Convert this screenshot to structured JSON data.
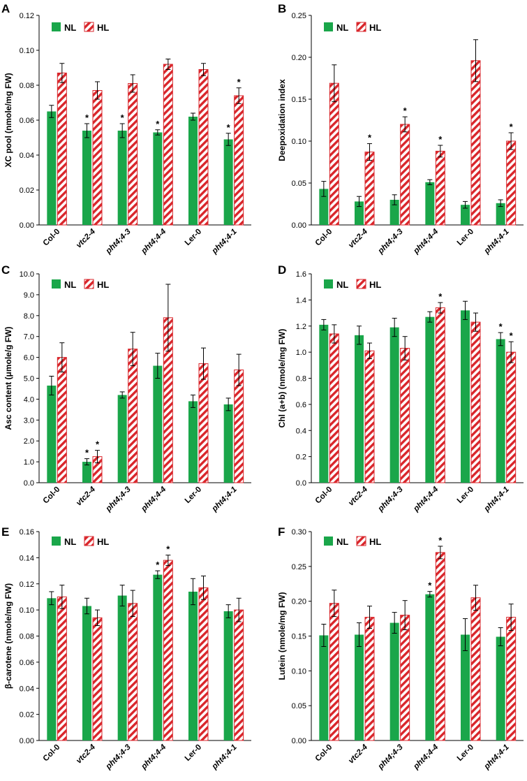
{
  "colors": {
    "nl": "#1aa64a",
    "hl_stroke": "#d9262b",
    "hl_stripe": "#d9262b"
  },
  "legend": {
    "nl": "NL",
    "hl": "HL"
  },
  "chart_data": [
    {
      "type": "bar",
      "letter": "A",
      "ylabel": "XC pool (nmole/mg FW)",
      "ylim": [
        0,
        0.12
      ],
      "ticks": [
        "0.00",
        "0.02",
        "0.04",
        "0.06",
        "0.08",
        "0.10",
        "0.12"
      ],
      "categories": [
        "Col-0",
        "vtc2-4",
        "pht4;4-3",
        "pht4;4-4",
        "Ler-0",
        "pht4;4-1"
      ],
      "italic": [
        false,
        true,
        true,
        true,
        false,
        true
      ],
      "series": [
        {
          "name": "NL",
          "values": [
            0.065,
            0.054,
            0.054,
            0.053,
            0.062,
            0.049
          ],
          "errors": [
            0.0035,
            0.004,
            0.004,
            0.0015,
            0.002,
            0.0035
          ],
          "sig": [
            false,
            true,
            true,
            true,
            false,
            true
          ]
        },
        {
          "name": "HL",
          "values": [
            0.087,
            0.077,
            0.081,
            0.092,
            0.089,
            0.074
          ],
          "errors": [
            0.0055,
            0.005,
            0.005,
            0.003,
            0.0035,
            0.0045
          ],
          "sig": [
            false,
            false,
            false,
            false,
            false,
            true
          ]
        }
      ]
    },
    {
      "type": "bar",
      "letter": "B",
      "ylabel": "Deepoxidation index",
      "ylim": [
        0,
        0.25
      ],
      "ticks": [
        "0.00",
        "0.05",
        "0.10",
        "0.15",
        "0.20",
        "0.25"
      ],
      "categories": [
        "Col-0",
        "vtc2-4",
        "pht4;4-3",
        "pht4;4-4",
        "Ler-0",
        "pht4;4-1"
      ],
      "italic": [
        false,
        true,
        true,
        true,
        false,
        true
      ],
      "series": [
        {
          "name": "NL",
          "values": [
            0.043,
            0.028,
            0.03,
            0.051,
            0.024,
            0.026
          ],
          "errors": [
            0.009,
            0.006,
            0.006,
            0.003,
            0.004,
            0.004
          ],
          "sig": [
            false,
            false,
            false,
            false,
            false,
            false
          ]
        },
        {
          "name": "HL",
          "values": [
            0.169,
            0.087,
            0.12,
            0.088,
            0.196,
            0.1
          ],
          "errors": [
            0.022,
            0.01,
            0.009,
            0.007,
            0.025,
            0.01
          ],
          "sig": [
            false,
            true,
            true,
            true,
            false,
            true
          ]
        }
      ]
    },
    {
      "type": "bar",
      "letter": "C",
      "ylabel": "Asc content (μmole/g FW)",
      "ylim": [
        0,
        10
      ],
      "ticks": [
        "0.0",
        "1.0",
        "2.0",
        "3.0",
        "4.0",
        "5.0",
        "6.0",
        "7.0",
        "8.0",
        "9.0",
        "10.0"
      ],
      "categories": [
        "Col-0",
        "vtc2-4",
        "pht4;4-3",
        "pht4;4-4",
        "Ler-0",
        "pht4;4-1"
      ],
      "italic": [
        false,
        true,
        true,
        true,
        false,
        true
      ],
      "series": [
        {
          "name": "NL",
          "values": [
            4.65,
            1.0,
            4.2,
            5.6,
            3.9,
            3.75
          ],
          "errors": [
            0.45,
            0.15,
            0.15,
            0.6,
            0.3,
            0.3
          ],
          "sig": [
            false,
            true,
            false,
            false,
            false,
            false
          ]
        },
        {
          "name": "HL",
          "values": [
            6.0,
            1.25,
            6.4,
            7.9,
            5.7,
            5.4
          ],
          "errors": [
            0.7,
            0.3,
            0.8,
            1.6,
            0.75,
            0.75
          ],
          "sig": [
            false,
            true,
            false,
            false,
            false,
            false
          ]
        }
      ]
    },
    {
      "type": "bar",
      "letter": "D",
      "ylabel": "Chl (a+b) (nmole/mg FW)",
      "ylim": [
        0,
        1.6
      ],
      "ticks": [
        "0.0",
        "0.2",
        "0.4",
        "0.6",
        "0.8",
        "1.0",
        "1.2",
        "1.4",
        "1.6"
      ],
      "categories": [
        "Col-0",
        "vtc2-4",
        "pht4;4-3",
        "pht4;4-4",
        "Ler-0",
        "pht4;4-1"
      ],
      "italic": [
        false,
        true,
        true,
        true,
        false,
        true
      ],
      "series": [
        {
          "name": "NL",
          "values": [
            1.21,
            1.13,
            1.19,
            1.27,
            1.32,
            1.1
          ],
          "errors": [
            0.04,
            0.07,
            0.07,
            0.04,
            0.07,
            0.05
          ],
          "sig": [
            false,
            false,
            false,
            false,
            false,
            true
          ]
        },
        {
          "name": "HL",
          "values": [
            1.14,
            1.01,
            1.03,
            1.34,
            1.23,
            1.0
          ],
          "errors": [
            0.07,
            0.06,
            0.09,
            0.04,
            0.07,
            0.08
          ],
          "sig": [
            false,
            false,
            false,
            true,
            false,
            true
          ]
        }
      ]
    },
    {
      "type": "bar",
      "letter": "E",
      "ylabel": "β-carotene (nmole/mg FW)",
      "ylim": [
        0,
        0.16
      ],
      "ticks": [
        "0.00",
        "0.02",
        "0.04",
        "0.06",
        "0.08",
        "0.10",
        "0.12",
        "0.14",
        "0.16"
      ],
      "categories": [
        "Col-0",
        "vtc2-4",
        "pht4;4-3",
        "pht4;4-4",
        "Ler-0",
        "pht4;4-1"
      ],
      "italic": [
        false,
        true,
        true,
        true,
        false,
        true
      ],
      "series": [
        {
          "name": "NL",
          "values": [
            0.109,
            0.103,
            0.111,
            0.127,
            0.114,
            0.099
          ],
          "errors": [
            0.005,
            0.006,
            0.008,
            0.003,
            0.01,
            0.005
          ],
          "sig": [
            false,
            false,
            false,
            true,
            false,
            false
          ]
        },
        {
          "name": "HL",
          "values": [
            0.11,
            0.094,
            0.105,
            0.138,
            0.117,
            0.1
          ],
          "errors": [
            0.009,
            0.006,
            0.01,
            0.004,
            0.009,
            0.009
          ],
          "sig": [
            false,
            false,
            false,
            true,
            false,
            false
          ]
        }
      ]
    },
    {
      "type": "bar",
      "letter": "F",
      "ylabel": "Lutein (nmole/mg FW)",
      "ylim": [
        0,
        0.3
      ],
      "ticks": [
        "0.00",
        "0.05",
        "0.10",
        "0.15",
        "0.20",
        "0.25",
        "0.30"
      ],
      "categories": [
        "Col-0",
        "vtc2-4",
        "pht4;4-3",
        "pht4;4-4",
        "Ler-0",
        "pht4;4-1"
      ],
      "italic": [
        false,
        true,
        true,
        true,
        false,
        true
      ],
      "series": [
        {
          "name": "NL",
          "values": [
            0.151,
            0.152,
            0.169,
            0.21,
            0.152,
            0.149
          ],
          "errors": [
            0.016,
            0.017,
            0.015,
            0.004,
            0.023,
            0.013
          ],
          "sig": [
            false,
            false,
            false,
            true,
            false,
            false
          ]
        },
        {
          "name": "HL",
          "values": [
            0.197,
            0.177,
            0.18,
            0.27,
            0.205,
            0.177
          ],
          "errors": [
            0.019,
            0.016,
            0.021,
            0.009,
            0.018,
            0.019
          ],
          "sig": [
            false,
            false,
            false,
            true,
            false,
            false
          ]
        }
      ]
    }
  ]
}
